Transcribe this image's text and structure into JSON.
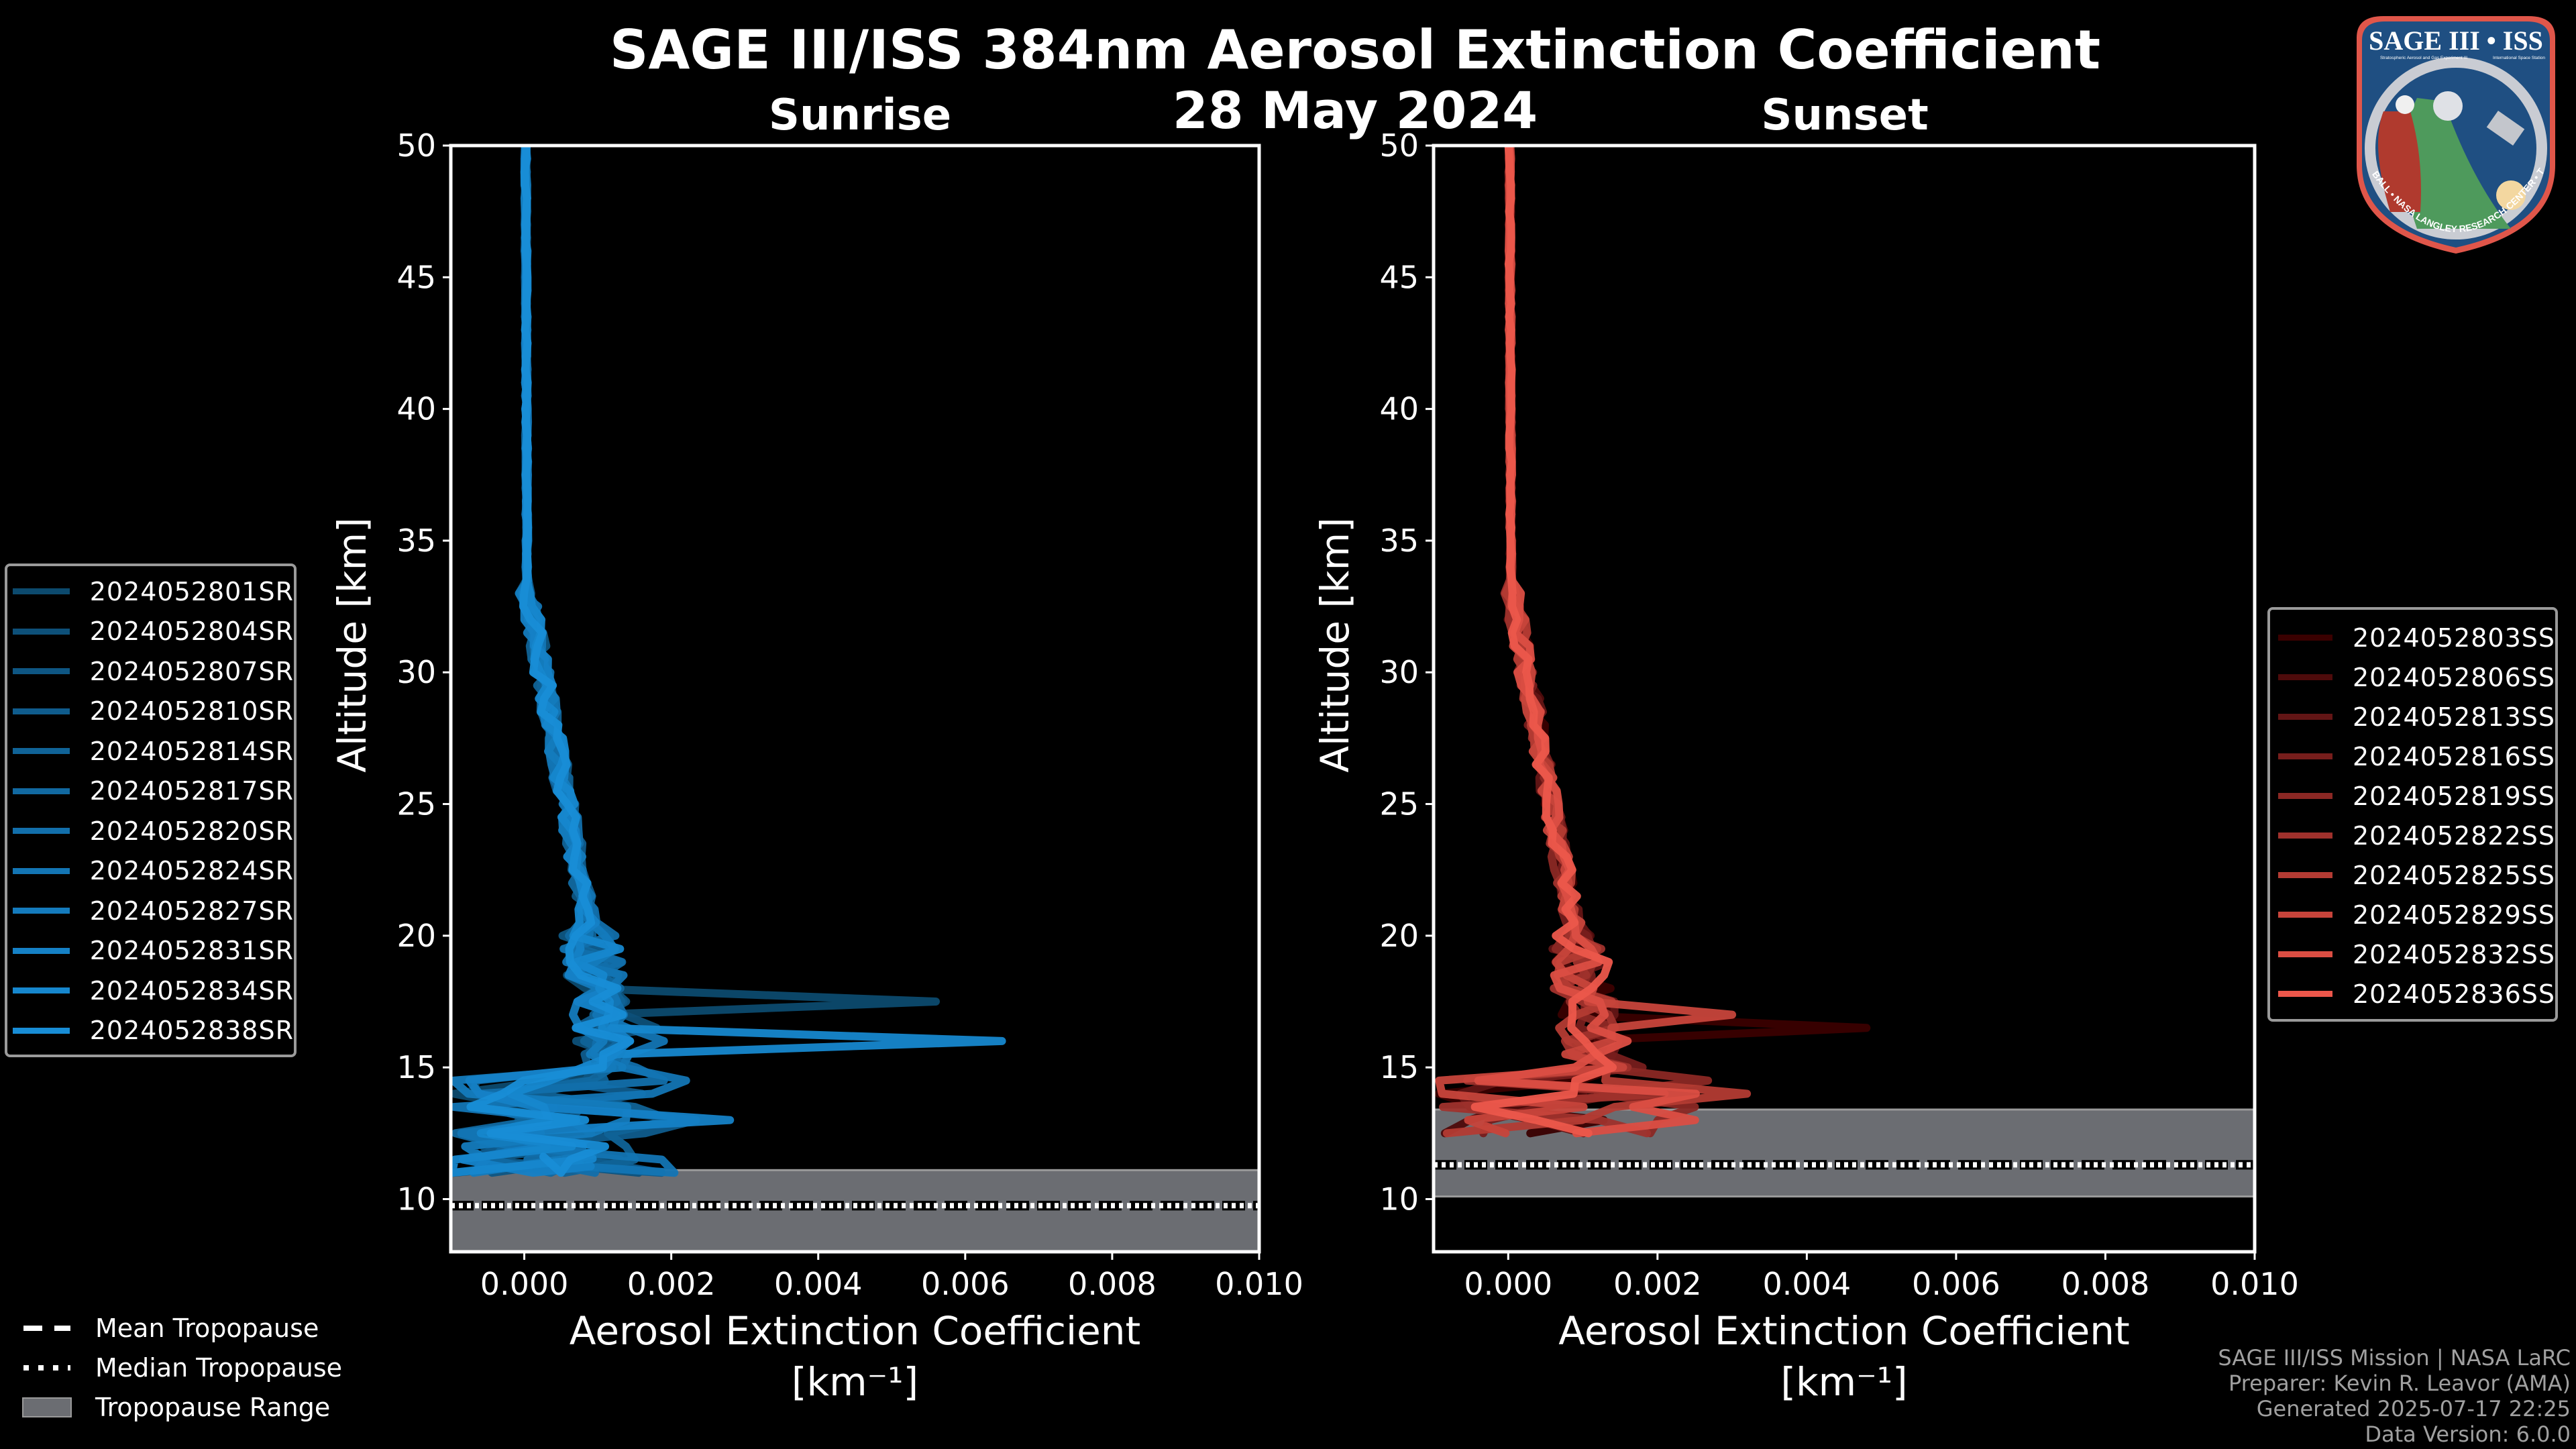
{
  "title": "SAGE III/ISS 384nm Aerosol Extinction Coefficient",
  "date": "28 May 2024",
  "logo": {
    "title": "SAGE III • ISS",
    "subtitle_left": "Stratospheric Aerosol and Gas Experiment III",
    "subtitle_right": "International Space Station",
    "ring_text": "BALL • NASA LANGLEY RESEARCH CENTER • TAS-I • ESA"
  },
  "tropopause_legend": [
    {
      "label": "Mean Tropopause",
      "style": "dashed"
    },
    {
      "label": "Median Tropopause",
      "style": "dotted"
    },
    {
      "label": "Tropopause Range",
      "style": "band",
      "color": "#6b6d72"
    }
  ],
  "credits": [
    "SAGE III/ISS Mission | NASA LaRC",
    "Preparer: Kevin R. Leavor (AMA)",
    "Generated 2025-07-17 22:25",
    "Data Version: 6.0.0"
  ],
  "chart_data": [
    {
      "type": "line",
      "title": "Sunrise",
      "xlabel": "Aerosol Extinction Coefficient",
      "xlabel_units": "[km⁻¹]",
      "ylabel": "Altitude [km]",
      "xlim": [
        -0.001,
        0.01
      ],
      "ylim": [
        8,
        50
      ],
      "xticks": [
        0.0,
        0.002,
        0.004,
        0.006,
        0.008,
        0.01
      ],
      "xtick_labels": [
        "0.000",
        "0.002",
        "0.004",
        "0.006",
        "0.008",
        "0.010"
      ],
      "yticks": [
        10,
        15,
        20,
        25,
        30,
        35,
        40,
        45,
        50
      ],
      "ytick_labels": [
        "10",
        "15",
        "20",
        "25",
        "30",
        "35",
        "40",
        "45",
        "50"
      ],
      "grid": false,
      "legend_position": "left-outside",
      "tropopause": {
        "mean": 9.75,
        "median": 9.75,
        "range": [
          8,
          11.1
        ]
      },
      "series": [
        {
          "name": "2024052801SR",
          "color": "#0c4a6e",
          "peak": {
            "alt": 17.5,
            "value": 0.0056
          },
          "low_max": 0.0012
        },
        {
          "name": "2024052804SR",
          "color": "#0d5079",
          "peak": {
            "alt": 16.5,
            "value": 0.0018
          },
          "low_max": 0.0016
        },
        {
          "name": "2024052807SR",
          "color": "#0e5683",
          "peak": {
            "alt": 15.3,
            "value": 0.0014
          },
          "low_max": 0.0013
        },
        {
          "name": "2024052810SR",
          "color": "#0f5c8d",
          "peak": {
            "alt": 14.0,
            "value": 0.0016
          },
          "low_max": 0.0024
        },
        {
          "name": "2024052814SR",
          "color": "#106397",
          "peak": {
            "alt": 13.2,
            "value": 0.002
          },
          "low_max": 0.0016
        },
        {
          "name": "2024052817SR",
          "color": "#1169a1",
          "peak": {
            "alt": 15.0,
            "value": 0.0012
          },
          "low_max": 0.0014
        },
        {
          "name": "2024052820SR",
          "color": "#126fab",
          "peak": {
            "alt": 14.6,
            "value": 0.0019
          },
          "low_max": 0.001
        },
        {
          "name": "2024052824SR",
          "color": "#1375b4",
          "peak": {
            "alt": 16.2,
            "value": 0.0019
          },
          "low_max": 0.0026
        },
        {
          "name": "2024052827SR",
          "color": "#147bbd",
          "peak": {
            "alt": 13.5,
            "value": 0.0014
          },
          "low_max": 0.0018
        },
        {
          "name": "2024052831SR",
          "color": "#1581c6",
          "peak": {
            "alt": 12.8,
            "value": 0.0028
          },
          "low_max": 0.0012
        },
        {
          "name": "2024052834SR",
          "color": "#1687ce",
          "peak": {
            "alt": 16.1,
            "value": 0.0065
          },
          "low_max": 0.001
        },
        {
          "name": "2024052838SR",
          "color": "#188dd6",
          "peak": {
            "alt": 12.0,
            "value": 0.0011
          },
          "low_max": 0.0009
        }
      ]
    },
    {
      "type": "line",
      "title": "Sunset",
      "xlabel": "Aerosol Extinction Coefficient",
      "xlabel_units": "[km⁻¹]",
      "ylabel": "Altitude [km]",
      "xlim": [
        -0.001,
        0.01
      ],
      "ylim": [
        8,
        50
      ],
      "xticks": [
        0.0,
        0.002,
        0.004,
        0.006,
        0.008,
        0.01
      ],
      "xtick_labels": [
        "0.000",
        "0.002",
        "0.004",
        "0.006",
        "0.008",
        "0.010"
      ],
      "yticks": [
        10,
        15,
        20,
        25,
        30,
        35,
        40,
        45,
        50
      ],
      "ytick_labels": [
        "10",
        "15",
        "20",
        "25",
        "30",
        "35",
        "40",
        "45",
        "50"
      ],
      "grid": false,
      "legend_position": "right-outside",
      "tropopause": {
        "mean": 11.3,
        "median": 11.3,
        "range": [
          10.1,
          13.4
        ]
      },
      "series": [
        {
          "name": "2024052803SS",
          "color": "#3a0000",
          "peak": {
            "alt": 16.6,
            "value": 0.0048
          },
          "low_max": 0.0014
        },
        {
          "name": "2024052806SS",
          "color": "#4e0b0b",
          "peak": {
            "alt": 16.2,
            "value": 0.0012
          },
          "low_max": 0.0016
        },
        {
          "name": "2024052813SS",
          "color": "#621515",
          "peak": {
            "alt": 15.5,
            "value": 0.0014
          },
          "low_max": 0.002
        },
        {
          "name": "2024052816SS",
          "color": "#771e1c",
          "peak": {
            "alt": 14.8,
            "value": 0.0018
          },
          "low_max": 0.0024
        },
        {
          "name": "2024052819SS",
          "color": "#8b2824",
          "peak": {
            "alt": 14.0,
            "value": 0.0012
          },
          "low_max": 0.0036
        },
        {
          "name": "2024052822SS",
          "color": "#9f312c",
          "peak": {
            "alt": 15.2,
            "value": 0.0016
          },
          "low_max": 0.0022
        },
        {
          "name": "2024052825SS",
          "color": "#b33b33",
          "peak": {
            "alt": 14.5,
            "value": 0.0013
          },
          "low_max": 0.0036
        },
        {
          "name": "2024052829SS",
          "color": "#c7443b",
          "peak": {
            "alt": 16.8,
            "value": 0.003
          },
          "low_max": 0.0018
        },
        {
          "name": "2024052832SS",
          "color": "#db4e43",
          "peak": {
            "alt": 16.0,
            "value": 0.0016
          },
          "low_max": 0.0032
        },
        {
          "name": "2024052836SS",
          "color": "#ec574b",
          "peak": {
            "alt": 15.0,
            "value": 0.0014
          },
          "low_max": 0.002
        }
      ]
    }
  ]
}
